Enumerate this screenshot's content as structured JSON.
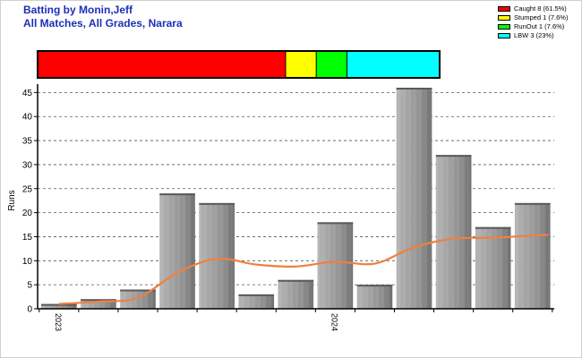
{
  "title": {
    "line1": "Batting by Monin,Jeff",
    "line2": "All Matches, All Grades, Narara"
  },
  "legend": [
    {
      "label": "Caught 8 (61.5%)",
      "color": "#ff0000"
    },
    {
      "label": "Stumped 1 (7.6%)",
      "color": "#ffff00"
    },
    {
      "label": "RunOut 1 (7.6%)",
      "color": "#00ff00"
    },
    {
      "label": "LBW 3 (23%)",
      "color": "#00ffff"
    }
  ],
  "dismissal_bar": [
    {
      "label": "Caught",
      "percent": 61.5,
      "color": "#ff0000"
    },
    {
      "label": "Stumped",
      "percent": 7.6,
      "color": "#ffff00"
    },
    {
      "label": "RunOut",
      "percent": 7.6,
      "color": "#00ff00"
    },
    {
      "label": "LBW",
      "percent": 23,
      "color": "#00ffff"
    }
  ],
  "chart_data": {
    "type": "bar",
    "ylabel": "Runs",
    "ylim": [
      0,
      46
    ],
    "yticks": [
      0,
      5,
      10,
      15,
      20,
      25,
      30,
      35,
      40,
      45
    ],
    "grid": "horizontal-dashed",
    "x_tick_labels": [
      {
        "label": "2023",
        "index": 0
      },
      {
        "label": "2024",
        "index": 7
      }
    ],
    "values": [
      1,
      2,
      4,
      24,
      22,
      3,
      6,
      18,
      5,
      46,
      32,
      17,
      22
    ],
    "trend_line": {
      "color": "#f08040",
      "values": [
        1,
        1.5,
        2.3,
        7.5,
        10.4,
        9.2,
        8.8,
        9.8,
        9.4,
        12.8,
        14.6,
        14.8,
        15.4
      ]
    },
    "bar_color": "#a6a6a6"
  }
}
